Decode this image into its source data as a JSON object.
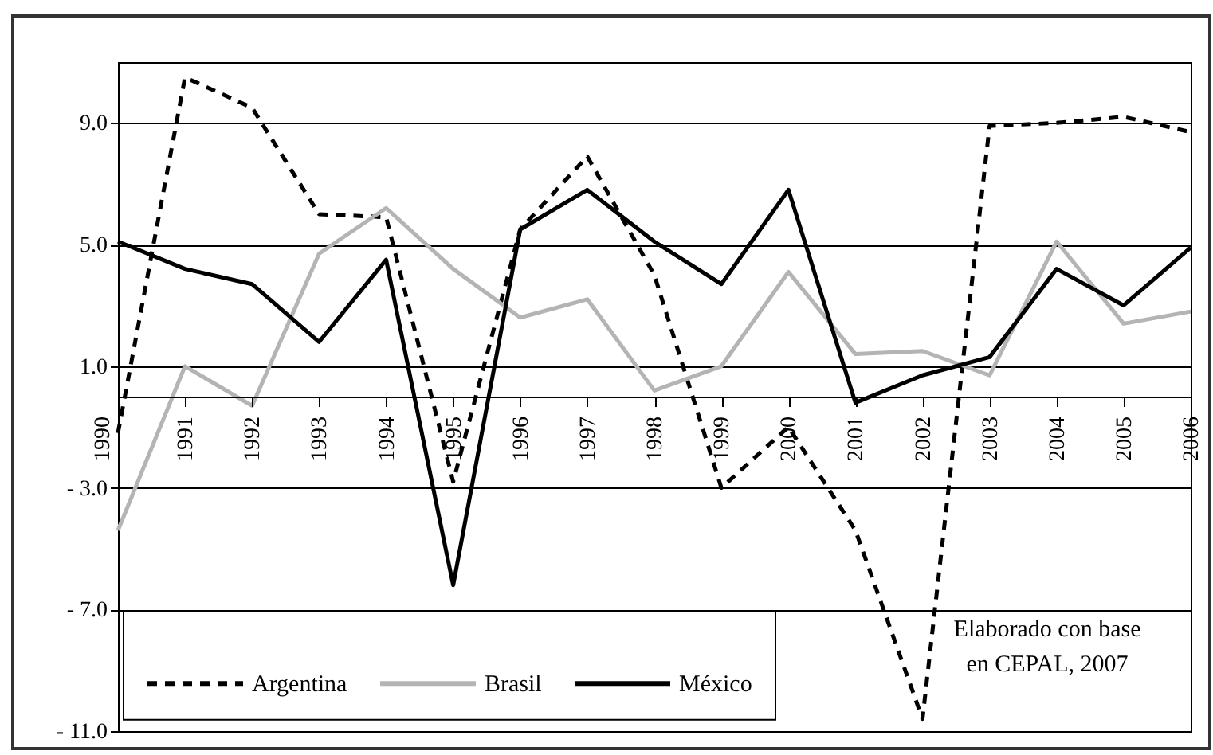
{
  "chart_data": {
    "type": "line",
    "categories": [
      "1990",
      "1991",
      "1992",
      "1993",
      "1994",
      "1995",
      "1996",
      "1997",
      "1998",
      "1999",
      "2000",
      "2001",
      "2002",
      "2003",
      "2004",
      "2005",
      "2006"
    ],
    "series": [
      {
        "name": "Argentina",
        "color": "#000000",
        "line_style": "dashed",
        "values": [
          -1.2,
          10.5,
          9.5,
          6.0,
          5.9,
          -2.8,
          5.5,
          7.9,
          4.0,
          -3.0,
          -1.0,
          -4.4,
          -10.6,
          8.9,
          9.0,
          9.2,
          8.7
        ]
      },
      {
        "name": "Brasil",
        "color": "#b4b4b4",
        "line_style": "solid",
        "values": [
          -4.4,
          1.0,
          -0.3,
          4.7,
          6.2,
          4.2,
          2.6,
          3.2,
          0.2,
          1.0,
          4.1,
          1.4,
          1.5,
          0.7,
          5.1,
          2.4,
          2.8
        ]
      },
      {
        "name": "México",
        "color": "#000000",
        "line_style": "solid",
        "values": [
          5.1,
          4.2,
          3.7,
          1.8,
          4.5,
          -6.2,
          5.5,
          6.8,
          5.1,
          3.7,
          6.8,
          -0.2,
          0.7,
          1.3,
          4.2,
          3.0,
          4.9
        ]
      }
    ],
    "ylim": [
      -11,
      11
    ],
    "yticks": [
      {
        "value": 9,
        "label": "9.0"
      },
      {
        "value": 5,
        "label": "5.0"
      },
      {
        "value": 1,
        "label": "1.0"
      },
      {
        "value": -3,
        "label": "- 3.0"
      },
      {
        "value": -7,
        "label": "- 7.0"
      },
      {
        "value": -11,
        "label": "- 11.0"
      }
    ],
    "grid": "y",
    "legend": "bottom left",
    "annotations": [
      "Elaborado con base\nen CEPAL, 2007"
    ]
  }
}
